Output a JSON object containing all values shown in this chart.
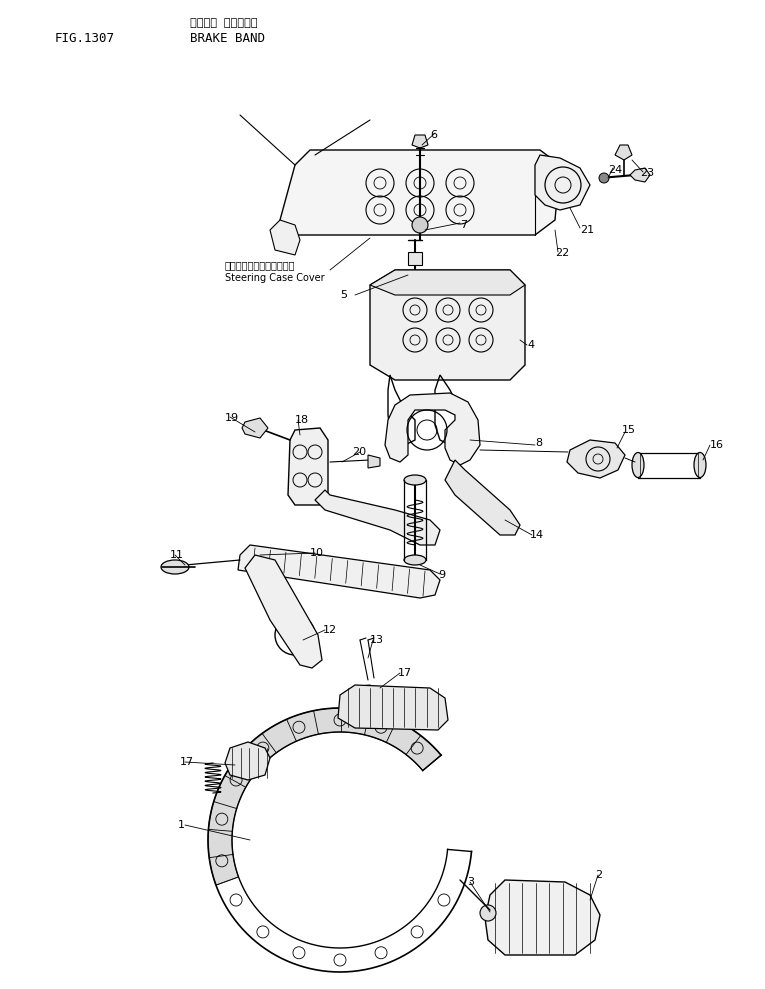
{
  "title_jp": "ブレーキ ハ゛ント゛",
  "title_fig": "FIG.1307",
  "title_en": "BRAKE BAND",
  "label_steering_jp": "ステアリングケースカバー",
  "label_steering_en": "Steering Case Cover",
  "bg_color": "#ffffff",
  "line_color": "#000000",
  "text_color": "#000000",
  "fig_w": 765,
  "fig_h": 989
}
